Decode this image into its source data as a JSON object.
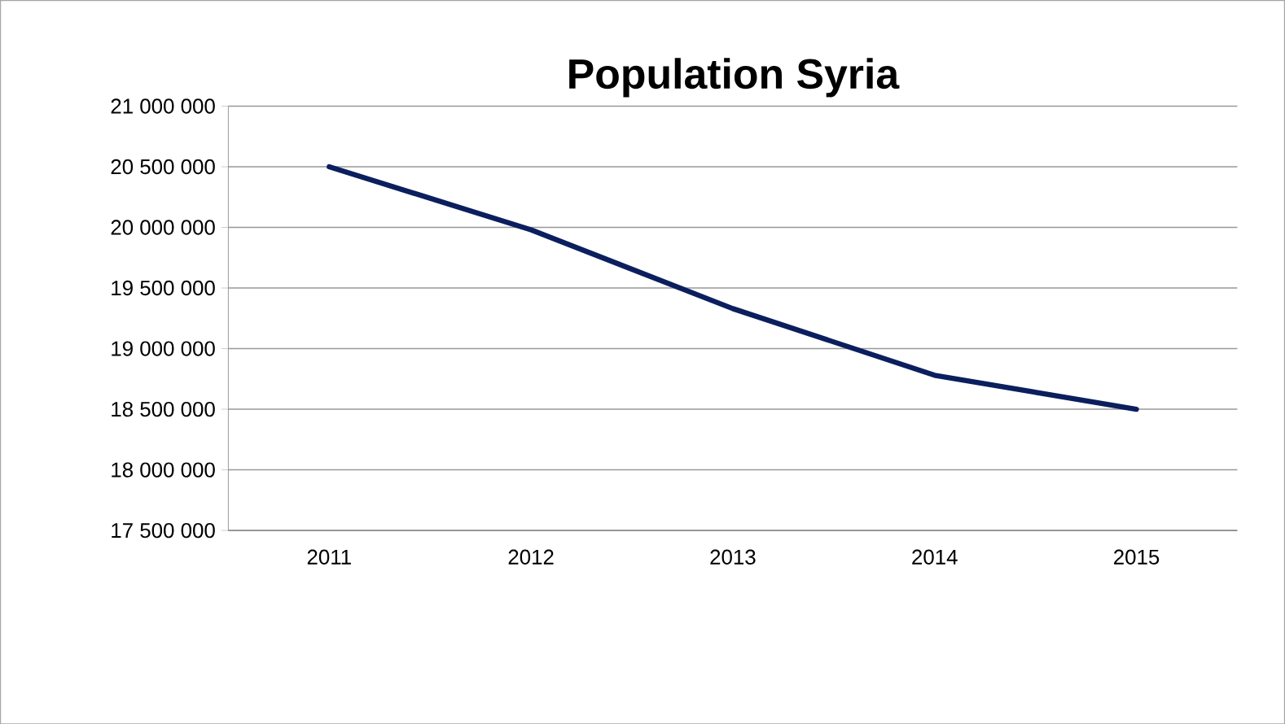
{
  "chart_data": {
    "type": "line",
    "title": "Population Syria",
    "categories": [
      "2011",
      "2012",
      "2013",
      "2014",
      "2015"
    ],
    "series": [
      {
        "color": "#0b1f5e",
        "values": [
          20500000,
          19980000,
          19330000,
          18780000,
          18500000
        ]
      }
    ],
    "ylim": [
      17500000,
      21000000
    ],
    "yticks": [
      {
        "value": 17500000,
        "label": "17 500 000"
      },
      {
        "value": 18000000,
        "label": "18 000 000"
      },
      {
        "value": 18500000,
        "label": "18 500 000"
      },
      {
        "value": 19000000,
        "label": "19 000 000"
      },
      {
        "value": 19500000,
        "label": "19 500 000"
      },
      {
        "value": 20000000,
        "label": "20 000 000"
      },
      {
        "value": 20500000,
        "label": "20 500 000"
      },
      {
        "value": 21000000,
        "label": "21 000 000"
      }
    ],
    "grid": "y",
    "marker": "none",
    "line_style": "solid"
  }
}
